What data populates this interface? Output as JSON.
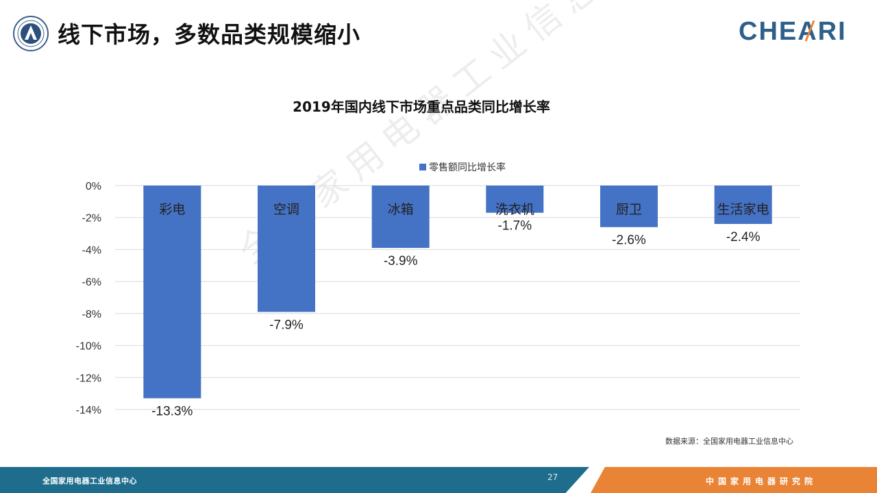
{
  "header": {
    "title": "线下市场，多数品类规模缩小",
    "brand": "CHEARI"
  },
  "chart_data": {
    "type": "bar",
    "title": "2019年国内线下市场重点品类同比增长率",
    "categories": [
      "彩电",
      "空调",
      "冰箱",
      "洗衣机",
      "厨卫",
      "生活家电"
    ],
    "series": [
      {
        "name": "零售额同比增长率",
        "values": [
          -13.3,
          -7.9,
          -3.9,
          -1.7,
          -2.6,
          -2.4
        ],
        "color": "#4472c4"
      }
    ],
    "value_labels": [
      "-13.3%",
      "-7.9%",
      "-3.9%",
      "-1.7%",
      "-2.6%",
      "-2.4%"
    ],
    "y_ticks": [
      "0%",
      "-2%",
      "-4%",
      "-6%",
      "-8%",
      "-10%",
      "-12%",
      "-14%"
    ],
    "ylim": [
      -14,
      0
    ],
    "grid": true,
    "legend_position": "top"
  },
  "watermark": "全国家用电器工业信息中心",
  "source": "数据来源：全国家用电器工业信息中心",
  "footer": {
    "left_text": "全国家用电器工业信息中心",
    "page_number": "27",
    "right_text": "中国家用电器研究院"
  }
}
